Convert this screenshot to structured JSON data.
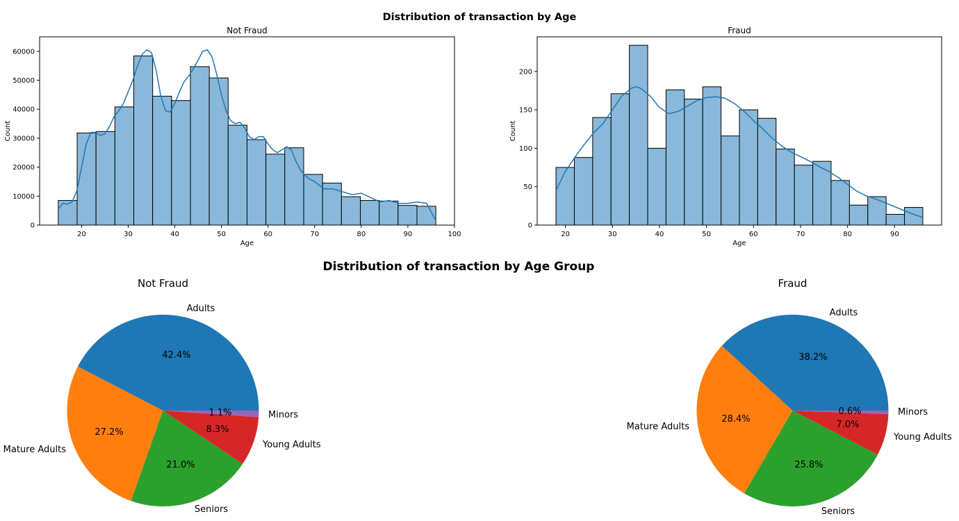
{
  "figure": {
    "top_title": "Distribution of transaction by Age",
    "mid_title": "Distribution of transaction by Age Group"
  },
  "chart_data": [
    {
      "type": "bar",
      "title": "Not Fraud",
      "xlabel": "Age",
      "ylabel": "Count",
      "xlim": [
        11,
        100
      ],
      "ylim": [
        0,
        65000
      ],
      "bin_start": 15,
      "bin_width": 4.05,
      "values": [
        8500,
        31800,
        32300,
        40800,
        58400,
        44500,
        43000,
        54700,
        50800,
        34500,
        29500,
        24500,
        26700,
        17500,
        14500,
        9800,
        8500,
        8300,
        6800,
        6500
      ],
      "x_ticks": [
        20,
        30,
        40,
        50,
        60,
        70,
        80,
        90,
        100
      ],
      "y_ticks": [
        0,
        10000,
        20000,
        30000,
        40000,
        50000,
        60000
      ],
      "kde": {
        "x": [
          15,
          16,
          17,
          18,
          19,
          20,
          21,
          22,
          23,
          24,
          25,
          26,
          27,
          28,
          29,
          30,
          31,
          32,
          33,
          34,
          35,
          36,
          37,
          38,
          39,
          40,
          41,
          42,
          43,
          44,
          45,
          46,
          47,
          48,
          49,
          50,
          51,
          52,
          53,
          54,
          55,
          56,
          57,
          58,
          59,
          60,
          61,
          62,
          63,
          64,
          65,
          66,
          67,
          68,
          69,
          70,
          72,
          74,
          76,
          78,
          80,
          82,
          84,
          86,
          88,
          90,
          92,
          94,
          96
        ],
        "y": [
          5500,
          7500,
          7200,
          8000,
          12000,
          20000,
          28000,
          32000,
          32000,
          31000,
          31500,
          34000,
          37500,
          39500,
          42000,
          46000,
          50000,
          55000,
          59000,
          60500,
          59500,
          53500,
          44500,
          39500,
          39000,
          42000,
          46000,
          49500,
          51500,
          54000,
          57000,
          60000,
          60500,
          58000,
          52000,
          45000,
          39500,
          36000,
          35000,
          35500,
          33500,
          30500,
          29500,
          30500,
          30500,
          28000,
          26000,
          25000,
          26000,
          27000,
          26000,
          22000,
          19000,
          17000,
          15800,
          15000,
          12500,
          12500,
          11500,
          10500,
          11000,
          9500,
          8000,
          8500,
          7500,
          7500,
          8000,
          7500,
          1500
        ]
      }
    },
    {
      "type": "bar",
      "title": "Fraud",
      "xlabel": "Age",
      "ylabel": "Count",
      "xlim": [
        14,
        100
      ],
      "ylim": [
        0,
        245
      ],
      "bin_start": 18,
      "bin_width": 3.9,
      "values": [
        75,
        88,
        140,
        171,
        234,
        100,
        176,
        164,
        180,
        116,
        150,
        139,
        99,
        78,
        83,
        58,
        26,
        37,
        14,
        23
      ],
      "x_ticks": [
        20,
        30,
        40,
        50,
        60,
        70,
        80,
        90
      ],
      "y_ticks": [
        0,
        50,
        100,
        150,
        200
      ],
      "kde": {
        "x": [
          18,
          20,
          22,
          24,
          26,
          28,
          30,
          32,
          34,
          35,
          36,
          38,
          40,
          42,
          44,
          46,
          48,
          50,
          52,
          54,
          56,
          58,
          60,
          62,
          64,
          66,
          68,
          70,
          72,
          74,
          76,
          78,
          80,
          82,
          84,
          86,
          88,
          90,
          92,
          94,
          96
        ],
        "y": [
          45,
          70,
          88,
          105,
          120,
          132,
          150,
          168,
          178,
          180,
          178,
          168,
          153,
          145,
          148,
          155,
          162,
          166,
          167,
          165,
          158,
          148,
          136,
          125,
          113,
          103,
          95,
          89,
          83,
          76,
          70,
          62,
          53,
          44,
          38,
          34,
          29,
          24,
          19,
          14,
          10
        ]
      }
    },
    {
      "type": "pie",
      "title": "Not Fraud",
      "labels": [
        "Adults",
        "Mature Adults",
        "Seniors",
        "Young Adults",
        "Minors"
      ],
      "values": [
        42.4,
        27.2,
        21.0,
        8.3,
        1.1
      ],
      "pct_labels": [
        "42.4%",
        "27.2%",
        "21.0%",
        "8.3%",
        "1.1%"
      ],
      "colors": [
        "#1f77b4",
        "#ff7f0e",
        "#2ca02c",
        "#d62728",
        "#9467bd"
      ]
    },
    {
      "type": "pie",
      "title": "Fraud",
      "labels": [
        "Adults",
        "Mature Adults",
        "Seniors",
        "Young Adults",
        "Minors"
      ],
      "values": [
        38.2,
        28.4,
        25.8,
        7.0,
        0.6
      ],
      "pct_labels": [
        "38.2%",
        "28.4%",
        "25.8%",
        "7.0%",
        "0.6%"
      ],
      "colors": [
        "#1f77b4",
        "#ff7f0e",
        "#2ca02c",
        "#d62728",
        "#9467bd"
      ]
    }
  ]
}
